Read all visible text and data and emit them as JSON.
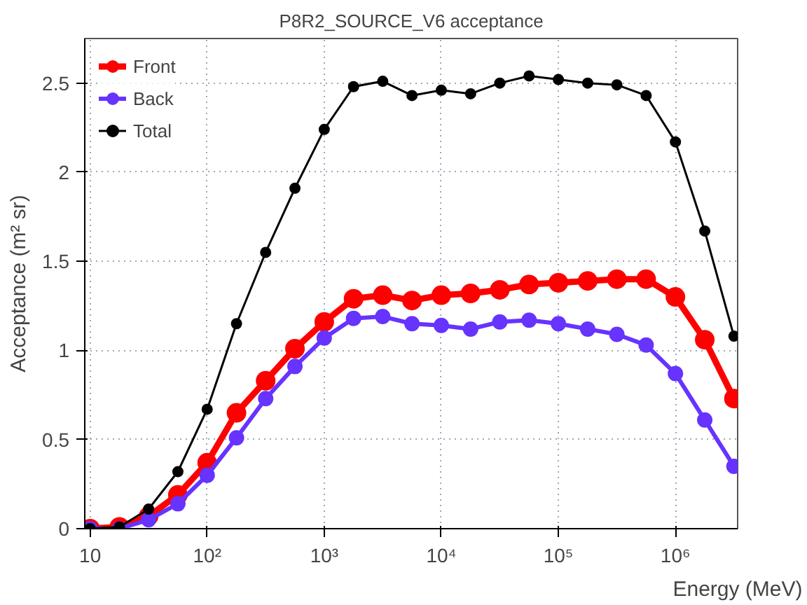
{
  "chart_data": {
    "type": "line",
    "title": "P8R2_SOURCE_V6 acceptance",
    "xlabel": "Energy (MeV)",
    "ylabel": "Acceptance (m² sr)",
    "x": [
      10,
      17.8,
      31.6,
      56.2,
      100,
      178,
      316,
      562,
      1000,
      1780,
      3160,
      5620,
      10000,
      17800,
      31600,
      56200,
      100000,
      178000,
      316000,
      562000,
      1000000,
      1780000,
      3160000
    ],
    "series": [
      {
        "name": "Front",
        "color": "#ff0000",
        "values": [
          0,
          0.01,
          0.07,
          0.19,
          0.37,
          0.65,
          0.83,
          1.01,
          1.16,
          1.29,
          1.31,
          1.28,
          1.31,
          1.32,
          1.34,
          1.37,
          1.38,
          1.39,
          1.4,
          1.4,
          1.3,
          1.06,
          0.73
        ]
      },
      {
        "name": "Back",
        "color": "#6633ff",
        "values": [
          0,
          0,
          0.05,
          0.14,
          0.3,
          0.51,
          0.73,
          0.91,
          1.07,
          1.18,
          1.19,
          1.15,
          1.14,
          1.12,
          1.16,
          1.17,
          1.15,
          1.12,
          1.09,
          1.03,
          0.87,
          0.61,
          0.35
        ]
      },
      {
        "name": "Total",
        "color": "#000000",
        "values": [
          0,
          0.01,
          0.11,
          0.32,
          0.67,
          1.15,
          1.55,
          1.91,
          2.24,
          2.48,
          2.51,
          2.43,
          2.46,
          2.44,
          2.5,
          2.54,
          2.52,
          2.5,
          2.49,
          2.43,
          2.17,
          1.67,
          1.08
        ]
      }
    ],
    "log": "x",
    "xlim": [
      9,
      3400000
    ],
    "ylim": [
      0,
      2.75
    ],
    "xticks": [
      {
        "value": 10,
        "label": "10"
      },
      {
        "value": 100,
        "label": "10²"
      },
      {
        "value": 1000,
        "label": "10³"
      },
      {
        "value": 10000,
        "label": "10⁴"
      },
      {
        "value": 100000,
        "label": "10⁵"
      },
      {
        "value": 1000000,
        "label": "10⁶"
      }
    ],
    "yticks": [
      0,
      0.5,
      1,
      1.5,
      2,
      2.5
    ],
    "grid": true,
    "legend": "top left",
    "marker": "circle",
    "line_style": "solid"
  }
}
